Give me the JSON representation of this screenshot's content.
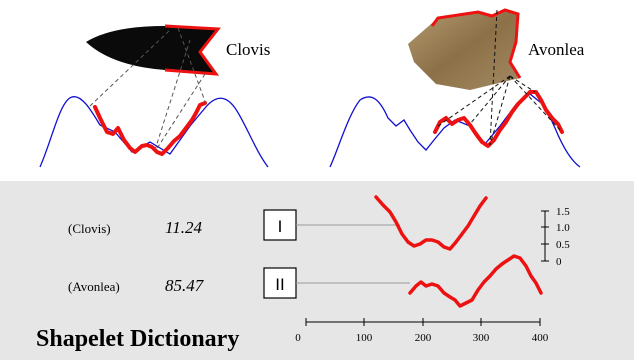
{
  "top_panel": {
    "clovis_label": "Clovis",
    "avonlea_label": "Avonlea"
  },
  "dictionary": {
    "title": "Shapelet Dictionary",
    "rows": [
      {
        "name": "(Clovis)",
        "value": "11.24",
        "id": "I"
      },
      {
        "name": "(Avonlea)",
        "value": "85.47",
        "id": "II"
      }
    ],
    "x_axis_ticks": [
      "0",
      "100",
      "200",
      "300",
      "400"
    ],
    "y_axis_ticks": [
      "1.5",
      "1.0",
      "0.5",
      "0"
    ]
  },
  "colors": {
    "series_blue": "#1010d0",
    "shapelet_red": "#ee1111",
    "panel_bg": "#e6e6e6",
    "clovis_fill": "#0a0a0a",
    "avonlea_fill": "#9c8158"
  }
}
